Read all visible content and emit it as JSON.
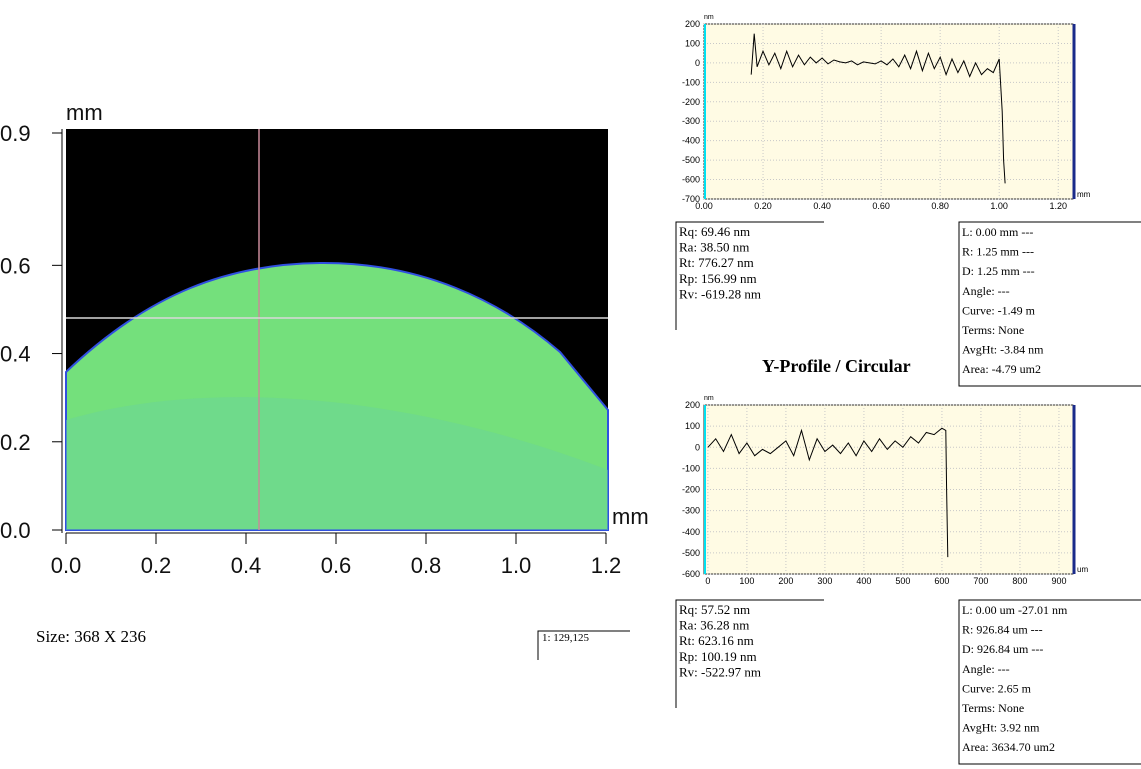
{
  "chart_data": [
    {
      "type": "image",
      "xlabel": "mm",
      "ylabel": "mm",
      "xlim": [
        0,
        1.2
      ],
      "ylim": [
        0,
        0.9
      ],
      "xticks": [
        {
          "value": 0,
          "label": "0.0"
        },
        {
          "value": 0.2,
          "label": "0.2"
        },
        {
          "value": 0.4,
          "label": "0.4"
        },
        {
          "value": 0.6,
          "label": "0.6"
        },
        {
          "value": 0.8,
          "label": "0.8"
        },
        {
          "value": 1.0,
          "label": "1.0"
        },
        {
          "value": 1.2,
          "label": "1.2"
        }
      ],
      "yticks": [
        {
          "value": 0,
          "label": "0.0"
        },
        {
          "value": 0.2,
          "label": "0.2"
        },
        {
          "value": 0.4,
          "label": "0.4"
        },
        {
          "value": 0.6,
          "label": "0.6"
        },
        {
          "value": 0.9,
          "label": "0.9"
        }
      ]
    },
    {
      "type": "line",
      "ylabel": "nm",
      "xlabel": "mm",
      "color": "#000000",
      "grid": true,
      "xlim": [
        0,
        1.25
      ],
      "ylim": [
        -700,
        200
      ],
      "xticks": [
        {
          "value": 0,
          "label": "0.00"
        },
        {
          "value": 0.2,
          "label": "0.20"
        },
        {
          "value": 0.4,
          "label": "0.40"
        },
        {
          "value": 0.6,
          "label": "0.60"
        },
        {
          "value": 0.8,
          "label": "0.80"
        },
        {
          "value": 1.0,
          "label": "1.00"
        },
        {
          "value": 1.2,
          "label": "1.20"
        }
      ],
      "yticks": [
        200,
        100,
        0,
        -100,
        -200,
        -300,
        -400,
        -500,
        -600,
        -700
      ],
      "x": [
        0.16,
        0.17,
        0.18,
        0.2,
        0.22,
        0.24,
        0.26,
        0.28,
        0.3,
        0.32,
        0.34,
        0.36,
        0.38,
        0.4,
        0.42,
        0.44,
        0.46,
        0.48,
        0.5,
        0.52,
        0.54,
        0.56,
        0.58,
        0.6,
        0.62,
        0.64,
        0.66,
        0.68,
        0.7,
        0.72,
        0.74,
        0.76,
        0.78,
        0.8,
        0.82,
        0.84,
        0.86,
        0.88,
        0.9,
        0.92,
        0.94,
        0.96,
        0.98,
        1.0,
        1.01,
        1.015,
        1.02
      ],
      "values": [
        -60,
        150,
        -20,
        60,
        -10,
        50,
        -30,
        60,
        -20,
        40,
        -10,
        30,
        0,
        25,
        -5,
        15,
        5,
        0,
        10,
        -10,
        5,
        0,
        -5,
        10,
        -10,
        20,
        -20,
        40,
        -30,
        60,
        -40,
        50,
        -30,
        30,
        -60,
        20,
        -50,
        10,
        -70,
        0,
        -60,
        -30,
        -50,
        20,
        -250,
        -500,
        -620
      ],
      "stats_left": [
        "Rq:  69.46 nm",
        "Ra:  38.50 nm",
        "Rt:  776.27 nm",
        "Rp:  156.99 nm",
        "Rv:  -619.28 nm"
      ],
      "stats_right": [
        "L:  0.00 mm  ---",
        "R:  1.25 mm  ---",
        "D:  1.25 mm  ---",
        "Angle:  ---",
        "Curve:  -1.49 m",
        "Terms:  None",
        "AvgHt:  -3.84 nm",
        "Area:  -4.79 um2"
      ]
    },
    {
      "type": "line",
      "ylabel": "nm",
      "xlabel": "um",
      "color": "#000000",
      "grid": true,
      "xlim": [
        -10,
        936
      ],
      "ylim": [
        -600,
        200
      ],
      "xticks": [
        0,
        100,
        200,
        300,
        400,
        500,
        600,
        700,
        800,
        900
      ],
      "yticks": [
        200,
        100,
        0,
        -100,
        -200,
        -300,
        -400,
        -500,
        -600
      ],
      "x": [
        0,
        20,
        40,
        60,
        80,
        100,
        120,
        140,
        160,
        180,
        200,
        220,
        240,
        260,
        280,
        300,
        320,
        340,
        360,
        380,
        400,
        420,
        440,
        460,
        480,
        500,
        520,
        540,
        560,
        580,
        600,
        610,
        612,
        615
      ],
      "values": [
        0,
        40,
        -20,
        60,
        -30,
        20,
        -40,
        -10,
        -30,
        0,
        30,
        -40,
        80,
        -60,
        40,
        -20,
        10,
        -30,
        20,
        -40,
        30,
        -20,
        40,
        -10,
        30,
        0,
        50,
        20,
        70,
        60,
        90,
        80,
        -200,
        -520
      ],
      "stats_left": [
        "Rq:  57.52 nm",
        "Ra:  36.28 nm",
        "Rt:  623.16 nm",
        "Rp:  100.19 nm",
        "Rv:  -522.97 nm"
      ],
      "stats_right": [
        "L:  0.00 um  -27.01 nm",
        "R:  926.84 um  ---",
        "D:  926.84 um  ---",
        "Angle:  ---",
        "Curve:  2.65 m",
        "Terms:  None",
        "AvgHt:  3.92 nm",
        "Area:  3634.70 um2"
      ]
    }
  ],
  "size_label": "Size: 368 X 236",
  "cursor_label": "1: 129,125",
  "profile_title": "Y-Profile / Circular"
}
